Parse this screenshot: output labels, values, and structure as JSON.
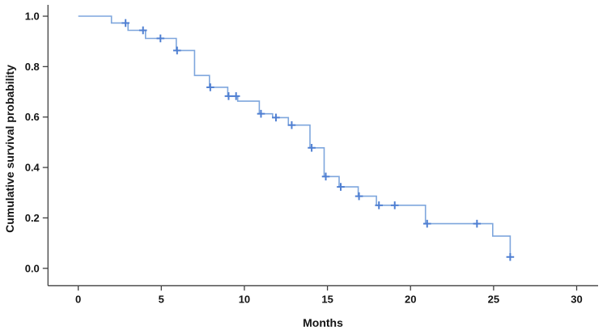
{
  "figure": {
    "background": "#ffffff"
  },
  "chart_data": {
    "type": "line",
    "subtype": "kaplan-meier-step-curve",
    "title": "",
    "xlabel": "Months",
    "ylabel": "Cumulative survival probability",
    "xlim": [
      -1.82,
      31.29
    ],
    "ylim": [
      -0.069,
      1.045
    ],
    "xticks": [
      "0",
      "5",
      "10",
      "15",
      "20",
      "25",
      "30"
    ],
    "xtick_values": [
      0,
      5,
      10,
      15,
      20,
      25,
      30
    ],
    "yticks": [
      "0.0",
      "0.2",
      "0.4",
      "0.6",
      "0.8",
      "1.0"
    ],
    "ytick_values": [
      0.0,
      0.2,
      0.4,
      0.6,
      0.8,
      1.0
    ],
    "grid": false,
    "legend": null,
    "series": [
      {
        "name": "Cumulative survival probability",
        "color": "#7EA6DD",
        "censor_color": "#4F7FD2",
        "steps": [
          [
            0,
            1.0
          ],
          [
            2.0,
            0.973
          ],
          [
            3.0,
            0.944
          ],
          [
            4.05,
            0.912
          ],
          [
            5.9,
            0.864
          ],
          [
            7.0,
            0.765
          ],
          [
            7.9,
            0.718
          ],
          [
            9.0,
            0.683
          ],
          [
            9.6,
            0.663
          ],
          [
            10.9,
            0.613
          ],
          [
            11.7,
            0.598
          ],
          [
            12.65,
            0.568
          ],
          [
            13.95,
            0.478
          ],
          [
            14.8,
            0.364
          ],
          [
            15.7,
            0.323
          ],
          [
            16.85,
            0.286
          ],
          [
            17.95,
            0.25
          ],
          [
            20.9,
            0.177
          ],
          [
            24.95,
            0.128
          ],
          [
            26.0,
            0.045
          ]
        ],
        "censors": [
          [
            2.85,
            0.973
          ],
          [
            3.9,
            0.944
          ],
          [
            4.95,
            0.912
          ],
          [
            5.95,
            0.864
          ],
          [
            7.95,
            0.718
          ],
          [
            9.05,
            0.683
          ],
          [
            9.5,
            0.683
          ],
          [
            11.0,
            0.613
          ],
          [
            11.9,
            0.598
          ],
          [
            12.85,
            0.568
          ],
          [
            14.05,
            0.478
          ],
          [
            14.9,
            0.364
          ],
          [
            15.8,
            0.323
          ],
          [
            16.9,
            0.286
          ],
          [
            18.1,
            0.25
          ],
          [
            19.05,
            0.25
          ],
          [
            21.0,
            0.177
          ],
          [
            24.0,
            0.177
          ],
          [
            26.0,
            0.045
          ]
        ]
      }
    ],
    "axis_color": "#404040",
    "tick_label_color": "#141414"
  }
}
